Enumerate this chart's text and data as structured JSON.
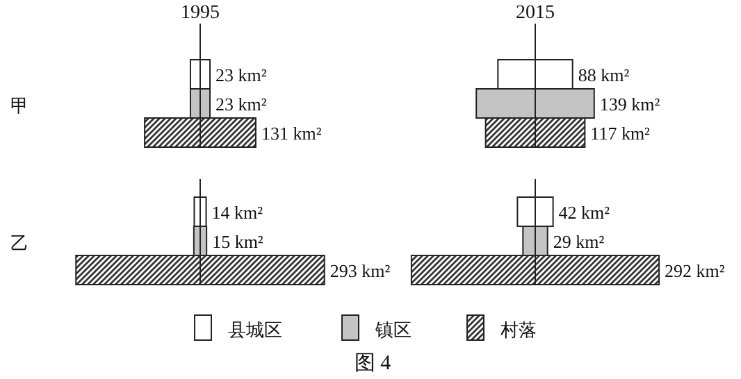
{
  "chart_data": [
    {
      "type": "other",
      "title": "1995",
      "ylabel": "甲",
      "categories": [
        null,
        null,
        null
      ],
      "colors": [
        "#ffffff",
        "#c4c4c4",
        "#333333"
      ],
      "values": [
        23,
        23,
        131
      ],
      "value_labels": [
        "23 km²",
        "23 km²",
        "131 km²"
      ]
    },
    {
      "type": "other",
      "title": "2015",
      "categories": [
        null,
        null,
        null
      ],
      "colors": [
        "#ffffff",
        "#c4c4c4",
        "#333333"
      ],
      "values": [
        88,
        139,
        117
      ],
      "value_labels": [
        "88 km²",
        "139 km²",
        "117 km²"
      ]
    },
    {
      "type": "other",
      "ylabel": "乙",
      "categories": [
        null,
        null,
        null
      ],
      "colors": [
        "#ffffff",
        "#c4c4c4",
        "#333333"
      ],
      "values": [
        14,
        15,
        293
      ],
      "value_labels": [
        "14 km²",
        "15 km²",
        "293 km²"
      ]
    },
    {
      "type": "other",
      "categories": [
        null,
        null,
        null
      ],
      "colors": [
        "#ffffff",
        "#c4c4c4",
        "#333333"
      ],
      "values": [
        42,
        29,
        292
      ],
      "value_labels": [
        "42 km²",
        "29 km²",
        "292 km²"
      ]
    },
    {
      "type": "other",
      "categories": [
        "县城区",
        "镇区",
        "村落"
      ],
      "colors": [
        "#ffffff",
        "#c4c4c4",
        "#333333"
      ],
      "annotations": [
        "图 4"
      ]
    }
  ]
}
